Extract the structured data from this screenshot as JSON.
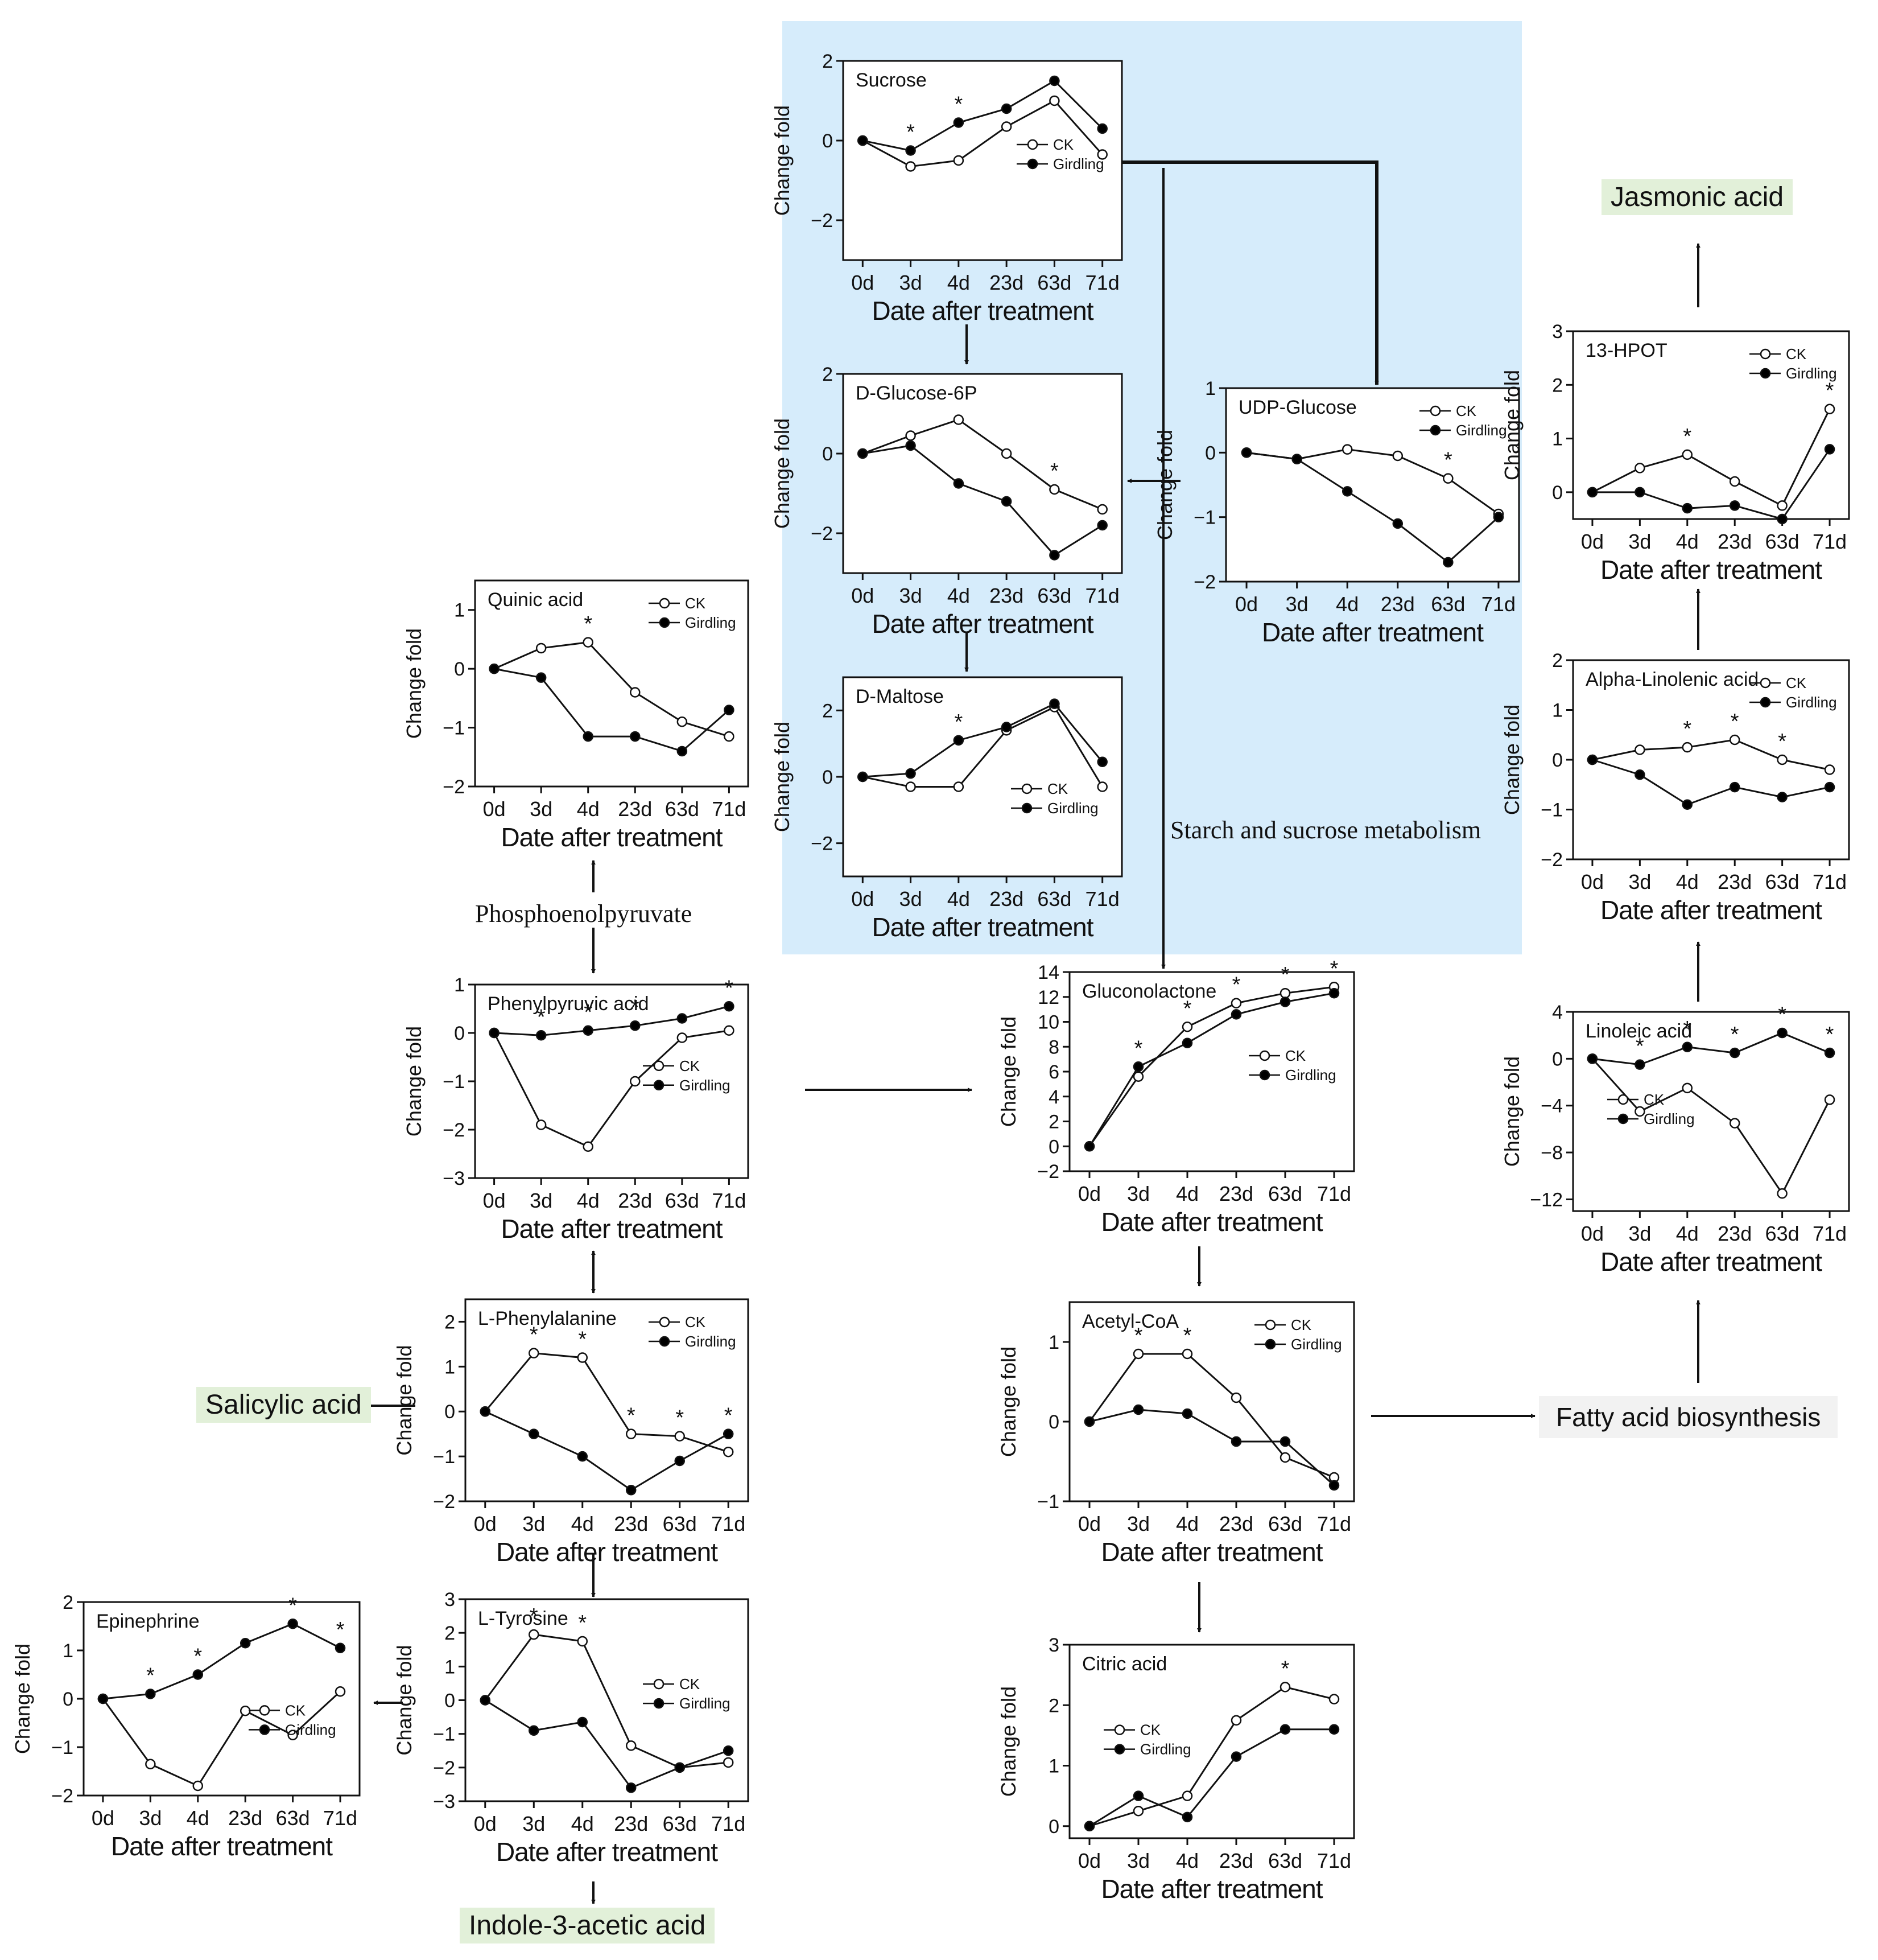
{
  "labels": {
    "jasmonic": "Jasmonic acid",
    "salicylic": "Salicylic acid",
    "indole": "Indole-3-acetic acid",
    "fatty": "Fatty acid biosynthesis",
    "pep": "Phosphoenolpyruvate",
    "starch": "Starch and sucrose metabolism"
  },
  "colors": {
    "highlight": "#d6ecfb",
    "green_tag": "#e2f0d9",
    "line": "#111111",
    "ck_fill": "#ffffff",
    "girdling_fill": "#000000"
  },
  "chart_data": [
    {
      "id": "sucrose",
      "type": "line",
      "title": "Sucrose",
      "xlabel": "Date after treatment",
      "ylabel": "Change fold",
      "categories": [
        "0d",
        "3d",
        "4d",
        "23d",
        "63d",
        "71d"
      ],
      "ylim": [
        -3,
        2
      ],
      "yticks": [
        -2,
        0,
        2
      ],
      "series": [
        {
          "name": "CK",
          "values": [
            0,
            -0.65,
            -0.5,
            0.35,
            1,
            -0.35
          ]
        },
        {
          "name": "Girdling",
          "values": [
            0,
            -0.25,
            0.45,
            0.8,
            1.5,
            0.3
          ]
        }
      ],
      "stars": [
        1,
        2
      ],
      "legend": "right-middle"
    },
    {
      "id": "glucose6p",
      "type": "line",
      "title": "D-Glucose-6P",
      "xlabel": "Date after treatment",
      "ylabel": "Change fold",
      "categories": [
        "0d",
        "3d",
        "4d",
        "23d",
        "63d",
        "71d"
      ],
      "ylim": [
        -3,
        2
      ],
      "yticks": [
        -2,
        0,
        2
      ],
      "series": [
        {
          "name": "CK",
          "values": [
            0,
            0.45,
            0.85,
            0,
            -0.9,
            -1.4
          ]
        },
        {
          "name": "Girdling",
          "values": [
            0,
            0.2,
            -0.75,
            -1.2,
            -2.55,
            -1.8
          ]
        }
      ],
      "stars": [
        4
      ],
      "legend": "none"
    },
    {
      "id": "maltose",
      "type": "line",
      "title": "D-Maltose",
      "xlabel": "Date after treatment",
      "ylabel": "Change fold",
      "categories": [
        "0d",
        "3d",
        "4d",
        "23d",
        "63d",
        "71d"
      ],
      "ylim": [
        -3,
        3
      ],
      "yticks": [
        -2,
        0,
        2
      ],
      "series": [
        {
          "name": "CK",
          "values": [
            0,
            -0.3,
            -0.3,
            1.4,
            2.1,
            -0.3
          ]
        },
        {
          "name": "Girdling",
          "values": [
            0,
            0.1,
            1.1,
            1.5,
            2.2,
            0.45
          ]
        }
      ],
      "stars": [
        2
      ],
      "legend": "right-lower"
    },
    {
      "id": "udpglucose",
      "type": "line",
      "title": "UDP-Glucose",
      "xlabel": "Date after treatment",
      "ylabel": "Change fold",
      "categories": [
        "0d",
        "3d",
        "4d",
        "23d",
        "63d",
        "71d"
      ],
      "ylim": [
        -2,
        1
      ],
      "yticks": [
        -2,
        -1,
        0,
        1
      ],
      "series": [
        {
          "name": "CK",
          "values": [
            0,
            -0.1,
            0.05,
            -0.05,
            -0.4,
            -0.95
          ]
        },
        {
          "name": "Girdling",
          "values": [
            0,
            -0.1,
            -0.6,
            -1.1,
            -1.7,
            -1
          ]
        }
      ],
      "stars": [
        4
      ],
      "legend": "top-right"
    },
    {
      "id": "quinic",
      "type": "line",
      "title": "Quinic acid",
      "xlabel": "Date after treatment",
      "ylabel": "Change fold",
      "categories": [
        "0d",
        "3d",
        "4d",
        "23d",
        "63d",
        "71d"
      ],
      "ylim": [
        -2,
        1.5
      ],
      "yticks": [
        -2,
        -1,
        0,
        1
      ],
      "series": [
        {
          "name": "CK",
          "values": [
            0,
            0.35,
            0.45,
            -0.4,
            -0.9,
            -1.15
          ]
        },
        {
          "name": "Girdling",
          "values": [
            0,
            -0.15,
            -1.15,
            -1.15,
            -1.4,
            -0.7
          ]
        }
      ],
      "stars": [
        2
      ],
      "legend": "top-right"
    },
    {
      "id": "phenylpyruvic",
      "type": "line",
      "title": "Phenylpyruvic acid",
      "xlabel": "Date after treatment",
      "ylabel": "Change fold",
      "categories": [
        "0d",
        "3d",
        "4d",
        "23d",
        "63d",
        "71d"
      ],
      "ylim": [
        -3,
        1
      ],
      "yticks": [
        -3,
        -2,
        -1,
        0,
        1
      ],
      "series": [
        {
          "name": "CK",
          "values": [
            0,
            -1.9,
            -2.35,
            -1,
            -0.1,
            0.05
          ]
        },
        {
          "name": "Girdling",
          "values": [
            0,
            -0.05,
            0.05,
            0.15,
            0.3,
            0.55
          ]
        }
      ],
      "stars": [
        1,
        2,
        3,
        5
      ],
      "legend": "right-middle"
    },
    {
      "id": "gluconolactone",
      "type": "line",
      "title": "Gluconolactone",
      "xlabel": "Date after treatment",
      "ylabel": "Change fold",
      "categories": [
        "0d",
        "3d",
        "4d",
        "23d",
        "63d",
        "71d"
      ],
      "ylim": [
        -2,
        14
      ],
      "yticks": [
        -2,
        0,
        2,
        4,
        6,
        8,
        10,
        12,
        14
      ],
      "series": [
        {
          "name": "CK",
          "values": [
            0,
            5.6,
            9.6,
            11.5,
            12.3,
            12.8
          ]
        },
        {
          "name": "Girdling",
          "values": [
            0,
            6.4,
            8.3,
            10.6,
            11.6,
            12.3
          ]
        }
      ],
      "stars": [
        1,
        2,
        3,
        4,
        5
      ],
      "legend": "right-middle"
    },
    {
      "id": "acetylcoa",
      "type": "line",
      "title": "Acetyl-CoA",
      "xlabel": "Date after treatment",
      "ylabel": "Change fold",
      "categories": [
        "0d",
        "3d",
        "4d",
        "23d",
        "63d",
        "71d"
      ],
      "ylim": [
        -1,
        1.5
      ],
      "yticks": [
        -1,
        0,
        1
      ],
      "series": [
        {
          "name": "CK",
          "values": [
            0,
            0.85,
            0.85,
            0.3,
            -0.45,
            -0.7
          ]
        },
        {
          "name": "Girdling",
          "values": [
            0,
            0.15,
            0.1,
            -0.25,
            -0.25,
            -0.8
          ]
        }
      ],
      "stars": [
        1,
        2
      ],
      "legend": "top-right"
    },
    {
      "id": "citric",
      "type": "line",
      "title": "Citric acid",
      "xlabel": "Date after treatment",
      "ylabel": "Change fold",
      "categories": [
        "0d",
        "3d",
        "4d",
        "23d",
        "63d",
        "71d"
      ],
      "ylim": [
        -0.2,
        3
      ],
      "yticks": [
        0,
        1,
        2,
        3
      ],
      "series": [
        {
          "name": "CK",
          "values": [
            0,
            0.25,
            0.5,
            1.75,
            2.3,
            2.1
          ]
        },
        {
          "name": "Girdling",
          "values": [
            0,
            0.5,
            0.15,
            1.15,
            1.6,
            1.6
          ]
        }
      ],
      "stars": [
        4
      ],
      "legend": "left-middle"
    },
    {
      "id": "phenylalanine",
      "type": "line",
      "title": "L-Phenylalanine",
      "xlabel": "Date after treatment",
      "ylabel": "Change fold",
      "categories": [
        "0d",
        "3d",
        "4d",
        "23d",
        "63d",
        "71d"
      ],
      "ylim": [
        -2,
        2.5
      ],
      "yticks": [
        -2,
        -1,
        0,
        1,
        2
      ],
      "series": [
        {
          "name": "CK",
          "values": [
            0,
            1.3,
            1.2,
            -0.5,
            -0.55,
            -0.9
          ]
        },
        {
          "name": "Girdling",
          "values": [
            0,
            -0.5,
            -1,
            -1.75,
            -1.1,
            -0.5
          ]
        }
      ],
      "stars": [
        1,
        2,
        3,
        4,
        5
      ],
      "legend": "top-right"
    },
    {
      "id": "tyrosine",
      "type": "line",
      "title": "L-Tyrosine",
      "xlabel": "Date after treatment",
      "ylabel": "Change fold",
      "categories": [
        "0d",
        "3d",
        "4d",
        "23d",
        "63d",
        "71d"
      ],
      "ylim": [
        -3,
        3
      ],
      "yticks": [
        -3,
        -2,
        -1,
        0,
        1,
        2,
        3
      ],
      "series": [
        {
          "name": "CK",
          "values": [
            0,
            1.95,
            1.75,
            -1.35,
            -2,
            -1.85
          ]
        },
        {
          "name": "Girdling",
          "values": [
            0,
            -0.9,
            -0.65,
            -2.6,
            -2,
            -1.5
          ]
        }
      ],
      "stars": [
        1,
        2
      ],
      "legend": "right-middle"
    },
    {
      "id": "epinephrine",
      "type": "line",
      "title": "Epinephrine",
      "xlabel": "Date after treatment",
      "ylabel": "Change fold",
      "categories": [
        "0d",
        "3d",
        "4d",
        "23d",
        "63d",
        "71d"
      ],
      "ylim": [
        -2,
        2
      ],
      "yticks": [
        -2,
        -1,
        0,
        1,
        2
      ],
      "series": [
        {
          "name": "CK",
          "values": [
            0,
            -1.35,
            -1.8,
            -0.25,
            -0.75,
            0.15
          ]
        },
        {
          "name": "Girdling",
          "values": [
            0,
            0.1,
            0.5,
            1.15,
            1.55,
            1.05
          ]
        }
      ],
      "stars": [
        1,
        2,
        4,
        5
      ],
      "legend": "right-lower"
    },
    {
      "id": "hpot",
      "type": "line",
      "title": "13-HPOT",
      "xlabel": "Date after treatment",
      "ylabel": "Change fold",
      "categories": [
        "0d",
        "3d",
        "4d",
        "23d",
        "63d",
        "71d"
      ],
      "ylim": [
        -0.5,
        3
      ],
      "yticks": [
        0,
        1,
        2,
        3
      ],
      "series": [
        {
          "name": "CK",
          "values": [
            0,
            0.45,
            0.7,
            0.2,
            -0.25,
            1.55
          ]
        },
        {
          "name": "Girdling",
          "values": [
            0,
            0,
            -0.3,
            -0.25,
            -0.5,
            0.8
          ]
        }
      ],
      "stars": [
        2,
        5
      ],
      "legend": "top-right"
    },
    {
      "id": "alphalinolenic",
      "type": "line",
      "title": "Alpha-Linolenic acid",
      "xlabel": "Date after treatment",
      "ylabel": "Change fold",
      "categories": [
        "0d",
        "3d",
        "4d",
        "23d",
        "63d",
        "71d"
      ],
      "ylim": [
        -2,
        2
      ],
      "yticks": [
        -2,
        -1,
        0,
        1,
        2
      ],
      "series": [
        {
          "name": "CK",
          "values": [
            0,
            0.2,
            0.25,
            0.4,
            0,
            -0.2
          ]
        },
        {
          "name": "Girdling",
          "values": [
            0,
            -0.3,
            -0.9,
            -0.55,
            -0.75,
            -0.55
          ]
        }
      ],
      "stars": [
        2,
        3,
        4
      ],
      "legend": "top-right"
    },
    {
      "id": "linoleic",
      "type": "line",
      "title": "Linoleic acid",
      "xlabel": "Date after treatment",
      "ylabel": "Change fold",
      "categories": [
        "0d",
        "3d",
        "4d",
        "23d",
        "63d",
        "71d"
      ],
      "ylim": [
        -13,
        4
      ],
      "yticks": [
        -12,
        -8,
        -4,
        0,
        4
      ],
      "series": [
        {
          "name": "CK",
          "values": [
            0,
            -4.5,
            -2.5,
            -5.5,
            -11.5,
            -3.5
          ]
        },
        {
          "name": "Girdling",
          "values": [
            0,
            -0.5,
            1,
            0.5,
            2.2,
            0.5
          ]
        }
      ],
      "stars": [
        1,
        2,
        3,
        4,
        5
      ],
      "legend": "left-middle"
    }
  ]
}
